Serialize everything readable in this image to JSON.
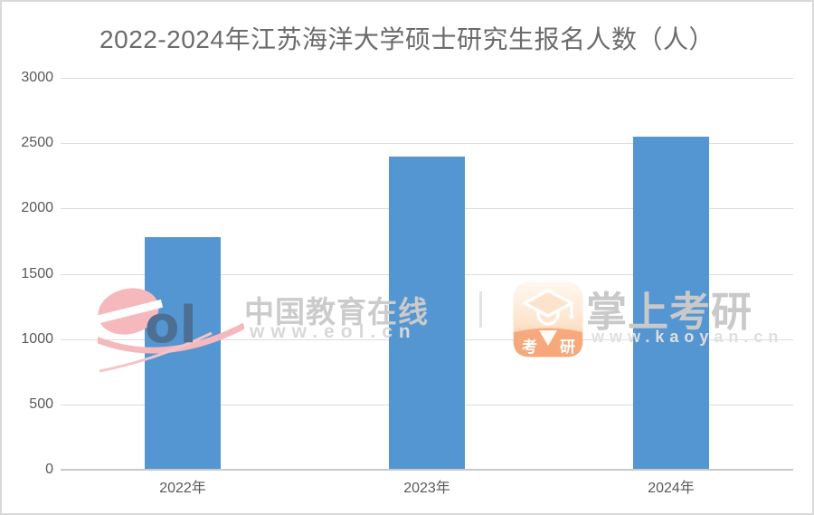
{
  "page": {
    "title": "2022-2024年江苏海洋大学硕士研究生报名人数（人）"
  },
  "chart_data": {
    "type": "bar",
    "title": "2022-2024年江苏海洋大学硕士研究生报名人数（人）",
    "categories": [
      "2022年",
      "2023年",
      "2024年"
    ],
    "values": [
      1780,
      2400,
      2550
    ],
    "xlabel": "",
    "ylabel": "",
    "ylim": [
      0,
      3000
    ],
    "yticks": [
      0,
      500,
      1000,
      1500,
      2000,
      2500,
      3000
    ],
    "grid": true,
    "legend": false,
    "bar_color": "#5496d2"
  },
  "watermark": {
    "eol_logo_text": "ol",
    "eol_name": "中国教育在线",
    "eol_url": "www.eol.cn",
    "app_name": "掌上考研",
    "app_url": "www.kaoyan.cn",
    "app_icon_char1": "考",
    "app_icon_char2": "研"
  },
  "colors": {
    "bar": "#5496d2",
    "title_text": "#6b6b6b",
    "axis_text": "#595959",
    "gridline": "#dcdcdc",
    "axis_line": "#c9c9c9",
    "watermark_gray": "#c9c9c9",
    "eol_pink": "#f5b8bd",
    "eol_blue": "#4e6f94",
    "app_icon_orange": "#f6a477",
    "frame_border": "#d9d9d9"
  }
}
